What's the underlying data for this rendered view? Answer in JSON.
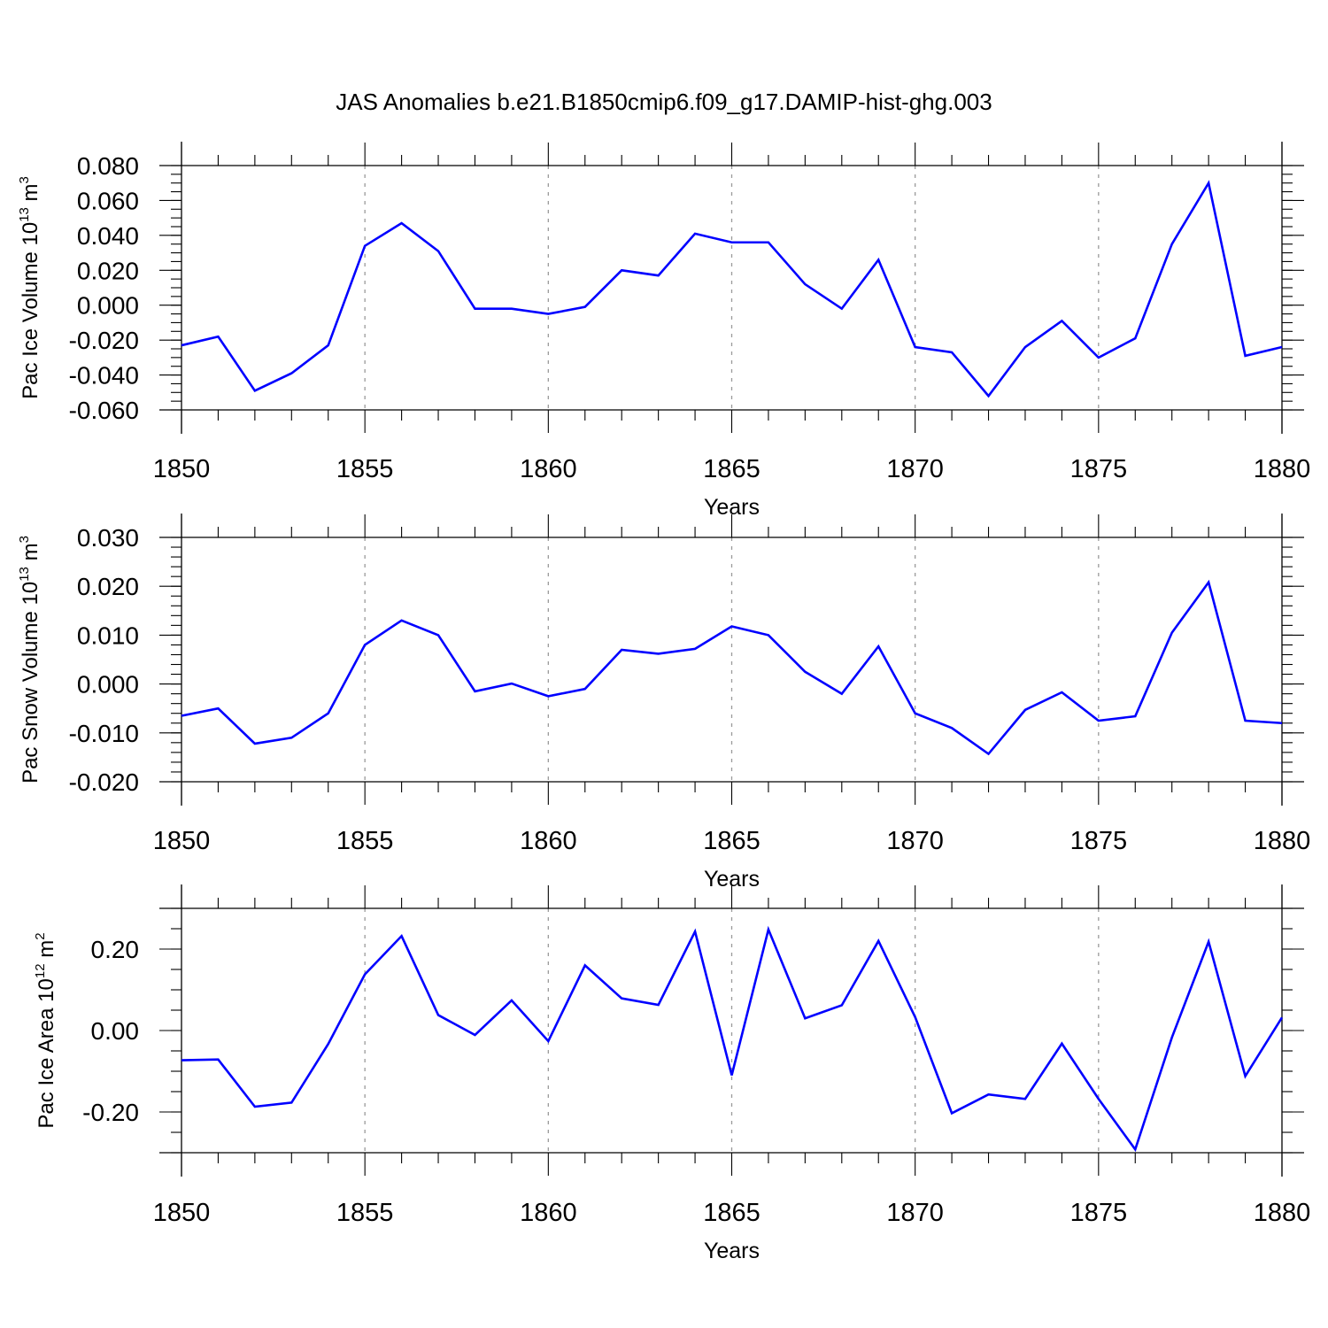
{
  "title": "JAS Anomalies b.e21.B1850cmip6.f09_g17.DAMIP-hist-ghg.003",
  "line_color": "#0000ff",
  "chart_data": [
    {
      "type": "line",
      "ylabel": "Pac Ice Volume 10",
      "ylabel_sup": "13",
      "ylabel_unit": " m",
      "ylabel_unit_sup": "3",
      "xlabel": "Years",
      "xlim": [
        1850,
        1880
      ],
      "ylim": [
        -0.06,
        0.08
      ],
      "ytick_values": [
        -0.06,
        -0.04,
        -0.02,
        0.0,
        0.02,
        0.04,
        0.06,
        0.08
      ],
      "ytick_labels": [
        "-0.060",
        "-0.040",
        "-0.020",
        "0.000",
        "0.020",
        "0.040",
        "0.060",
        "0.080"
      ],
      "yminor_step": 0.005,
      "xtick_values": [
        1850,
        1855,
        1860,
        1865,
        1870,
        1875,
        1880
      ],
      "xtick_labels": [
        "1850",
        "1855",
        "1860",
        "1865",
        "1870",
        "1875",
        "1880"
      ],
      "x": [
        1850,
        1851,
        1852,
        1853,
        1854,
        1855,
        1856,
        1857,
        1858,
        1859,
        1860,
        1861,
        1862,
        1863,
        1864,
        1865,
        1866,
        1867,
        1868,
        1869,
        1870,
        1871,
        1872,
        1873,
        1874,
        1875,
        1876,
        1877,
        1878,
        1879,
        1880
      ],
      "series": [
        {
          "name": "Pac Ice Volume",
          "values": [
            -0.023,
            -0.018,
            -0.049,
            -0.039,
            -0.023,
            0.034,
            0.047,
            0.031,
            -0.002,
            -0.002,
            -0.005,
            -0.001,
            0.02,
            0.017,
            0.041,
            0.036,
            0.036,
            0.012,
            -0.002,
            0.026,
            -0.024,
            -0.027,
            -0.052,
            -0.024,
            -0.009,
            -0.03,
            -0.019,
            0.035,
            0.07,
            -0.029,
            -0.024
          ]
        }
      ]
    },
    {
      "type": "line",
      "ylabel": "Pac Snow Volume 10",
      "ylabel_sup": "13",
      "ylabel_unit": " m",
      "ylabel_unit_sup": "3",
      "xlabel": "Years",
      "xlim": [
        1850,
        1880
      ],
      "ylim": [
        -0.02,
        0.03
      ],
      "ytick_values": [
        -0.02,
        -0.01,
        0.0,
        0.01,
        0.02,
        0.03
      ],
      "ytick_labels": [
        "-0.020",
        "-0.010",
        "0.000",
        "0.010",
        "0.020",
        "0.030"
      ],
      "yminor_step": 0.002,
      "xtick_values": [
        1850,
        1855,
        1860,
        1865,
        1870,
        1875,
        1880
      ],
      "xtick_labels": [
        "1850",
        "1855",
        "1860",
        "1865",
        "1870",
        "1875",
        "1880"
      ],
      "x": [
        1850,
        1851,
        1852,
        1853,
        1854,
        1855,
        1856,
        1857,
        1858,
        1859,
        1860,
        1861,
        1862,
        1863,
        1864,
        1865,
        1866,
        1867,
        1868,
        1869,
        1870,
        1871,
        1872,
        1873,
        1874,
        1875,
        1876,
        1877,
        1878,
        1879,
        1880
      ],
      "series": [
        {
          "name": "Pac Snow Volume",
          "values": [
            -0.0065,
            -0.005,
            -0.0122,
            -0.011,
            -0.006,
            0.008,
            0.013,
            0.01,
            -0.0015,
            0.0001,
            -0.0025,
            -0.001,
            0.007,
            0.0062,
            0.0072,
            0.0118,
            0.01,
            0.0025,
            -0.002,
            0.0077,
            -0.006,
            -0.009,
            -0.0143,
            -0.0053,
            -0.0017,
            -0.0075,
            -0.0066,
            0.0105,
            0.0208,
            -0.0075,
            -0.008
          ]
        }
      ]
    },
    {
      "type": "line",
      "ylabel": "Pac Ice Area 10",
      "ylabel_sup": "12",
      "ylabel_unit": " m",
      "ylabel_unit_sup": "2",
      "xlabel": "Years",
      "xlim": [
        1850,
        1880
      ],
      "ylim": [
        -0.3,
        0.3
      ],
      "ytick_values": [
        -0.2,
        0.0,
        0.2
      ],
      "ytick_labels": [
        "-0.20",
        "0.00",
        "0.20"
      ],
      "yminor_step": 0.05,
      "xtick_values": [
        1850,
        1855,
        1860,
        1865,
        1870,
        1875,
        1880
      ],
      "xtick_labels": [
        "1850",
        "1855",
        "1860",
        "1865",
        "1870",
        "1875",
        "1880"
      ],
      "x": [
        1850,
        1851,
        1852,
        1853,
        1854,
        1855,
        1856,
        1857,
        1858,
        1859,
        1860,
        1861,
        1862,
        1863,
        1864,
        1865,
        1866,
        1867,
        1868,
        1869,
        1870,
        1871,
        1872,
        1873,
        1874,
        1875,
        1876,
        1877,
        1878,
        1879,
        1880
      ],
      "series": [
        {
          "name": "Pac Ice Area",
          "values": [
            -0.073,
            -0.071,
            -0.187,
            -0.177,
            -0.033,
            0.138,
            0.232,
            0.038,
            -0.011,
            0.074,
            -0.026,
            0.16,
            0.079,
            0.063,
            0.243,
            -0.11,
            0.248,
            0.03,
            0.062,
            0.22,
            0.033,
            -0.203,
            -0.157,
            -0.168,
            -0.032,
            -0.168,
            -0.292,
            -0.017,
            0.218,
            -0.112,
            0.032
          ]
        }
      ]
    }
  ]
}
